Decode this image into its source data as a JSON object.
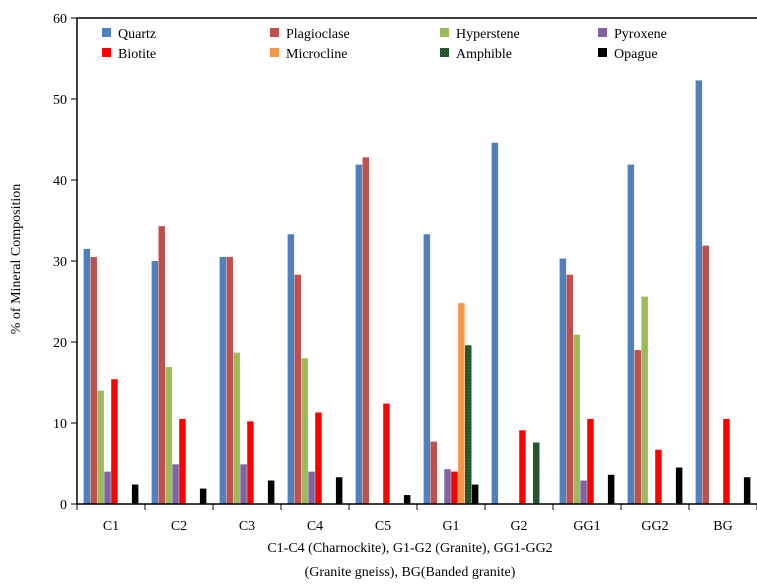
{
  "chart_data": {
    "type": "bar",
    "ylabel": "% of Mineral Composition",
    "caption_lines": [
      "C1-C4 (Charnockite), G1-G2 (Granite), GG1-GG2",
      "(Granite gneiss), BG(Banded granite)"
    ],
    "ylim": [
      0,
      60
    ],
    "yticks": [
      0,
      10,
      20,
      30,
      40,
      50,
      60
    ],
    "grid": false,
    "legend_position": "top, inside plot area",
    "categories": [
      "C1",
      "C2",
      "C3",
      "C4",
      "C5",
      "G1",
      "G2",
      "GG1",
      "GG2",
      "BG"
    ],
    "series": [
      {
        "name": "Quartz",
        "color": "#4F81BD",
        "values": [
          31.5,
          30.0,
          30.5,
          33.3,
          41.9,
          33.3,
          44.6,
          30.3,
          41.9,
          52.3
        ]
      },
      {
        "name": "Plagioclase",
        "color": "#C0504D",
        "values": [
          30.5,
          34.3,
          30.5,
          28.3,
          42.8,
          7.7,
          0,
          28.3,
          19.0,
          31.9
        ]
      },
      {
        "name": "Hyperstene",
        "color": "#9BBB59",
        "values": [
          14.0,
          16.9,
          18.7,
          18.0,
          0,
          0,
          0,
          20.9,
          25.6,
          0
        ]
      },
      {
        "name": "Pyroxene",
        "color": "#8064A2",
        "values": [
          4.0,
          4.9,
          4.9,
          4.0,
          0,
          4.3,
          0,
          2.9,
          0,
          0
        ]
      },
      {
        "name": "Biotite",
        "color": "#FF0000",
        "values": [
          15.4,
          10.5,
          10.2,
          11.3,
          12.4,
          4.0,
          9.1,
          10.5,
          6.7,
          10.5
        ]
      },
      {
        "name": "Microcline",
        "color": "#F79646",
        "values": [
          0,
          0,
          0,
          0,
          0,
          24.8,
          0,
          0,
          0,
          0
        ]
      },
      {
        "name": "Amphible",
        "color": "#1E4D2B",
        "values": [
          0,
          0,
          0,
          0,
          0,
          19.6,
          7.6,
          0,
          0,
          0
        ]
      },
      {
        "name": "Opague",
        "color": "#000000",
        "values": [
          2.4,
          1.9,
          2.9,
          3.3,
          1.1,
          2.4,
          0,
          3.6,
          4.5,
          3.3
        ]
      }
    ]
  }
}
